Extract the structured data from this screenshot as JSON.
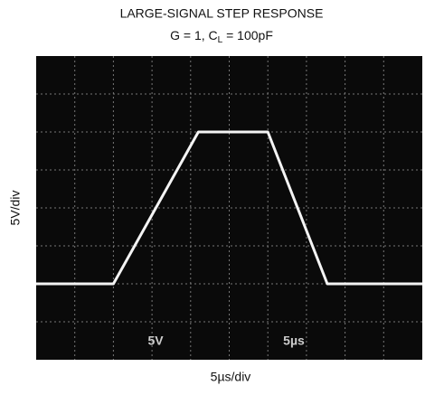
{
  "chart_data": {
    "type": "line",
    "title": "LARGE-SIGNAL STEP RESPONSE",
    "subtitle": [
      "G = 1, C",
      "L",
      " = 100pF"
    ],
    "y_label": "5V/div",
    "x_label": "5µs/div",
    "screen_labels": [
      "5V",
      "5µs"
    ],
    "x": [
      0,
      10,
      21,
      30,
      37.7,
      50
    ],
    "values": [
      -10,
      -10,
      10,
      10,
      -10,
      -10
    ],
    "color": "#f4f4f4",
    "xlim": [
      0,
      50
    ],
    "ylim": [
      -20,
      20
    ],
    "grid": true
  }
}
